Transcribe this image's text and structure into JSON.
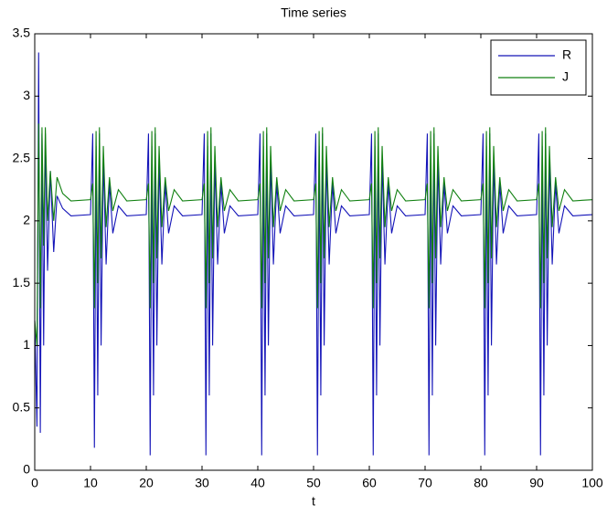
{
  "chart_data": {
    "type": "line",
    "title": "Time series",
    "xlabel": "t",
    "x": [
      0,
      0.4,
      0.7,
      1,
      1.3,
      1.6,
      1.9,
      2.3,
      2.8,
      3.4,
      4,
      5,
      6.5,
      10,
      10.4,
      10.7,
      11,
      11.3,
      11.6,
      11.9,
      12.3,
      12.8,
      13.4,
      14,
      15,
      16.5,
      20,
      20.4,
      20.7,
      21,
      21.3,
      21.6,
      21.9,
      22.3,
      22.8,
      23.4,
      24,
      25,
      26.5,
      30,
      30.4,
      30.7,
      31,
      31.3,
      31.6,
      31.9,
      32.3,
      32.8,
      33.4,
      34,
      35,
      36.5,
      40,
      40.4,
      40.7,
      41,
      41.3,
      41.6,
      41.9,
      42.3,
      42.8,
      43.4,
      44,
      45,
      46.5,
      50,
      50.4,
      50.7,
      51,
      51.3,
      51.6,
      51.9,
      52.3,
      52.8,
      53.4,
      54,
      55,
      56.5,
      60,
      60.4,
      60.7,
      61,
      61.3,
      61.6,
      61.9,
      62.3,
      62.8,
      63.4,
      64,
      65,
      66.5,
      70,
      70.4,
      70.7,
      71,
      71.3,
      71.6,
      71.9,
      72.3,
      72.8,
      73.4,
      74,
      75,
      76.5,
      80,
      80.4,
      80.7,
      81,
      81.3,
      81.6,
      81.9,
      82.3,
      82.8,
      83.4,
      84,
      85,
      86.5,
      90,
      90.4,
      90.7,
      91,
      91.3,
      91.6,
      91.9,
      92.3,
      92.8,
      93.4,
      94,
      95,
      96.5,
      100
    ],
    "series": [
      {
        "name": "R",
        "color": "#1414b8",
        "values": [
          1.2,
          0.35,
          3.35,
          0.3,
          2.7,
          1.0,
          2.7,
          1.6,
          2.4,
          1.75,
          2.2,
          2.1,
          2.04,
          2.05,
          2.7,
          0.18,
          2.6,
          0.6,
          2.7,
          1.0,
          2.5,
          1.65,
          2.3,
          1.9,
          2.12,
          2.04,
          2.05,
          2.7,
          0.12,
          2.6,
          0.6,
          2.7,
          1.0,
          2.5,
          1.65,
          2.3,
          1.9,
          2.12,
          2.04,
          2.05,
          2.7,
          0.12,
          2.6,
          0.6,
          2.7,
          1.0,
          2.5,
          1.65,
          2.3,
          1.9,
          2.12,
          2.04,
          2.05,
          2.7,
          0.12,
          2.6,
          0.6,
          2.7,
          1.0,
          2.5,
          1.65,
          2.3,
          1.9,
          2.12,
          2.04,
          2.05,
          2.7,
          0.12,
          2.6,
          0.6,
          2.7,
          1.0,
          2.5,
          1.65,
          2.3,
          1.9,
          2.12,
          2.04,
          2.05,
          2.7,
          0.12,
          2.6,
          0.6,
          2.7,
          1.0,
          2.5,
          1.65,
          2.3,
          1.9,
          2.12,
          2.04,
          2.05,
          2.7,
          0.12,
          2.6,
          0.6,
          2.7,
          1.0,
          2.5,
          1.65,
          2.3,
          1.9,
          2.12,
          2.04,
          2.05,
          2.7,
          0.12,
          2.6,
          0.6,
          2.7,
          1.0,
          2.5,
          1.65,
          2.3,
          1.9,
          2.12,
          2.04,
          2.05,
          2.7,
          0.12,
          2.6,
          0.6,
          2.7,
          1.0,
          2.5,
          1.65,
          2.3,
          1.9,
          2.12,
          2.04,
          2.05
        ]
      },
      {
        "name": "J",
        "color": "#118011",
        "values": [
          1.2,
          1.0,
          2.78,
          1.3,
          2.75,
          1.8,
          2.75,
          2.0,
          2.4,
          2.0,
          2.35,
          2.22,
          2.16,
          2.17,
          2.3,
          1.3,
          2.72,
          1.5,
          2.75,
          1.7,
          2.6,
          1.95,
          2.35,
          2.08,
          2.25,
          2.16,
          2.17,
          2.3,
          1.3,
          2.72,
          1.5,
          2.75,
          1.7,
          2.6,
          1.95,
          2.35,
          2.08,
          2.25,
          2.16,
          2.17,
          2.3,
          1.3,
          2.72,
          1.5,
          2.75,
          1.7,
          2.6,
          1.95,
          2.35,
          2.08,
          2.25,
          2.16,
          2.17,
          2.3,
          1.3,
          2.72,
          1.5,
          2.75,
          1.7,
          2.6,
          1.95,
          2.35,
          2.08,
          2.25,
          2.16,
          2.17,
          2.3,
          1.3,
          2.72,
          1.5,
          2.75,
          1.7,
          2.6,
          1.95,
          2.35,
          2.08,
          2.25,
          2.16,
          2.17,
          2.3,
          1.3,
          2.72,
          1.5,
          2.75,
          1.7,
          2.6,
          1.95,
          2.35,
          2.08,
          2.25,
          2.16,
          2.17,
          2.3,
          1.3,
          2.72,
          1.5,
          2.75,
          1.7,
          2.6,
          1.95,
          2.35,
          2.08,
          2.25,
          2.16,
          2.17,
          2.3,
          1.3,
          2.72,
          1.5,
          2.75,
          1.7,
          2.6,
          1.95,
          2.35,
          2.08,
          2.25,
          2.16,
          2.17,
          2.3,
          1.3,
          2.72,
          1.5,
          2.75,
          1.7,
          2.6,
          1.95,
          2.35,
          2.08,
          2.25,
          2.16,
          2.17
        ]
      }
    ],
    "xlim": [
      0,
      100
    ],
    "xticks": [
      0,
      10,
      20,
      30,
      40,
      50,
      60,
      70,
      80,
      90,
      100
    ],
    "ylim": [
      0,
      3.5
    ],
    "yticks": [
      0,
      0.5,
      1,
      1.5,
      2,
      2.5,
      3,
      3.5
    ],
    "grid": false,
    "legend": "top-right"
  }
}
